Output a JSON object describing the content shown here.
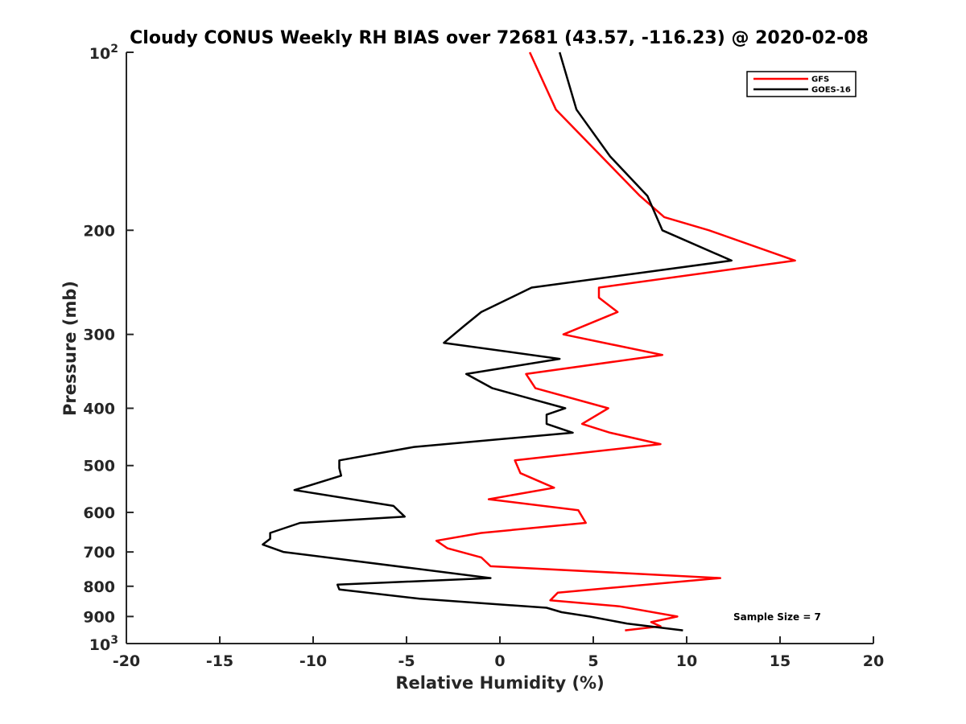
{
  "chart_data": {
    "type": "line",
    "title": "Cloudy CONUS Weekly RH BIAS over 72681 (43.57, -116.23) @ 2020-02-08",
    "xlabel": "Relative Humidity (%)",
    "ylabel": "Pressure (mb)",
    "xlim": [
      -20,
      20
    ],
    "ylim": [
      100,
      1000
    ],
    "y_scale": "log",
    "y_reversed": true,
    "grid": false,
    "legend_position": "top-right",
    "x_ticks": [
      "-20",
      "-15",
      "-10",
      "-5",
      "0",
      "5",
      "10",
      "15",
      "20"
    ],
    "y_ticks": [
      {
        "value": 100,
        "base": "10",
        "exp": "2"
      },
      {
        "value": 200,
        "label": "200"
      },
      {
        "value": 300,
        "label": "300"
      },
      {
        "value": 400,
        "label": "400"
      },
      {
        "value": 500,
        "label": "500"
      },
      {
        "value": 600,
        "label": "600"
      },
      {
        "value": 700,
        "label": "700"
      },
      {
        "value": 800,
        "label": "800"
      },
      {
        "value": 900,
        "label": "900"
      },
      {
        "value": 1000,
        "base": "10",
        "exp": "3"
      }
    ],
    "series": [
      {
        "name": "GFS",
        "color": "#ff0000",
        "points": [
          [
            1.6,
            100
          ],
          [
            3.0,
            125
          ],
          [
            7.5,
            175
          ],
          [
            8.8,
            190
          ],
          [
            11.2,
            200
          ],
          [
            15.8,
            225
          ],
          [
            5.3,
            250
          ],
          [
            5.3,
            260
          ],
          [
            6.3,
            275
          ],
          [
            3.4,
            300
          ],
          [
            8.7,
            325
          ],
          [
            1.4,
            350
          ],
          [
            1.9,
            370
          ],
          [
            5.8,
            400
          ],
          [
            4.4,
            425
          ],
          [
            5.9,
            440
          ],
          [
            8.6,
            460
          ],
          [
            0.8,
            490
          ],
          [
            1.1,
            515
          ],
          [
            2.9,
            545
          ],
          [
            -0.6,
            570
          ],
          [
            4.2,
            595
          ],
          [
            4.6,
            625
          ],
          [
            -1.0,
            650
          ],
          [
            -3.4,
            670
          ],
          [
            -2.8,
            690
          ],
          [
            -1.0,
            715
          ],
          [
            -0.5,
            740
          ],
          [
            11.8,
            775
          ],
          [
            3.1,
            820
          ],
          [
            2.7,
            845
          ],
          [
            6.4,
            865
          ],
          [
            9.5,
            900
          ],
          [
            8.1,
            920
          ],
          [
            8.6,
            935
          ],
          [
            6.7,
            950
          ]
        ]
      },
      {
        "name": "GOES-16",
        "color": "#000000",
        "points": [
          [
            3.2,
            100
          ],
          [
            4.1,
            125
          ],
          [
            5.9,
            150
          ],
          [
            7.9,
            175
          ],
          [
            8.7,
            200
          ],
          [
            12.4,
            225
          ],
          [
            1.7,
            250
          ],
          [
            -1.0,
            275
          ],
          [
            -1.9,
            290
          ],
          [
            -3.0,
            310
          ],
          [
            3.2,
            330
          ],
          [
            -1.8,
            350
          ],
          [
            -0.4,
            370
          ],
          [
            3.5,
            400
          ],
          [
            2.5,
            410
          ],
          [
            2.5,
            425
          ],
          [
            3.9,
            440
          ],
          [
            -4.6,
            465
          ],
          [
            -8.6,
            490
          ],
          [
            -8.6,
            505
          ],
          [
            -8.5,
            520
          ],
          [
            -11.0,
            550
          ],
          [
            -5.7,
            585
          ],
          [
            -5.1,
            610
          ],
          [
            -10.7,
            625
          ],
          [
            -12.3,
            650
          ],
          [
            -12.3,
            665
          ],
          [
            -12.7,
            680
          ],
          [
            -11.6,
            700
          ],
          [
            -0.5,
            775
          ],
          [
            -8.7,
            795
          ],
          [
            -8.6,
            810
          ],
          [
            -4.3,
            840
          ],
          [
            2.5,
            870
          ],
          [
            3.3,
            885
          ],
          [
            4.8,
            900
          ],
          [
            6.8,
            925
          ],
          [
            9.8,
            950
          ]
        ]
      }
    ],
    "annotations": [
      "Sample Size = 7"
    ]
  }
}
